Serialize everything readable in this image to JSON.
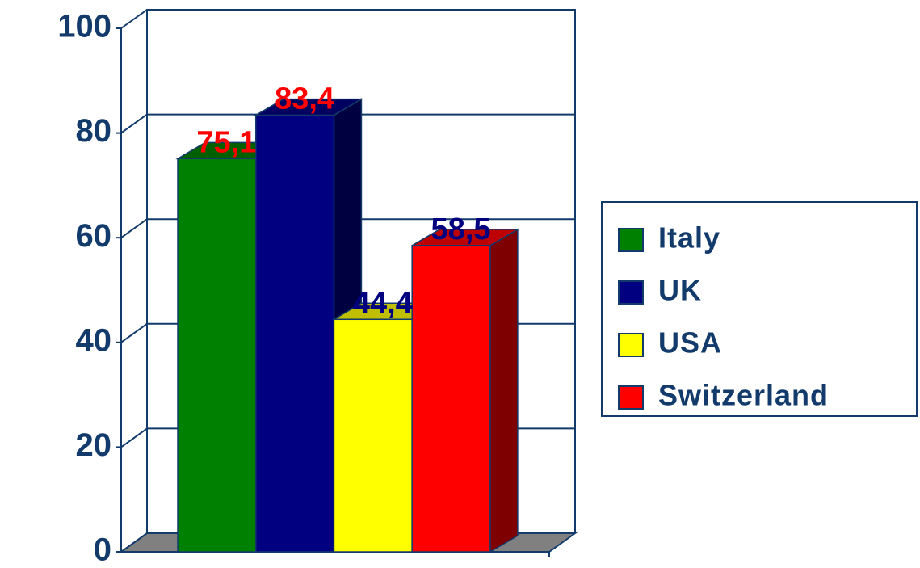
{
  "chart_data": {
    "type": "bar3d",
    "categories": [
      null
    ],
    "series": [
      {
        "name": "Italy",
        "color": "#008000",
        "label_color": "#ff0000",
        "values": [
          75.1
        ],
        "value_labels": [
          "75,1"
        ]
      },
      {
        "name": "UK",
        "color": "#000080",
        "label_color": "#ff0000",
        "values": [
          83.4
        ],
        "value_labels": [
          "83,4"
        ]
      },
      {
        "name": "USA",
        "color": "#ffff00",
        "label_color": "#000080",
        "values": [
          44.4
        ],
        "value_labels": [
          "44,4"
        ]
      },
      {
        "name": "Switzerland",
        "color": "#ff0000",
        "label_color": "#000080",
        "values": [
          58.5
        ],
        "value_labels": [
          "58,5"
        ]
      }
    ],
    "ylim": [
      0,
      100
    ],
    "yticks": [
      0,
      20,
      40,
      60,
      80,
      100
    ],
    "grid": true,
    "legend": "right"
  }
}
